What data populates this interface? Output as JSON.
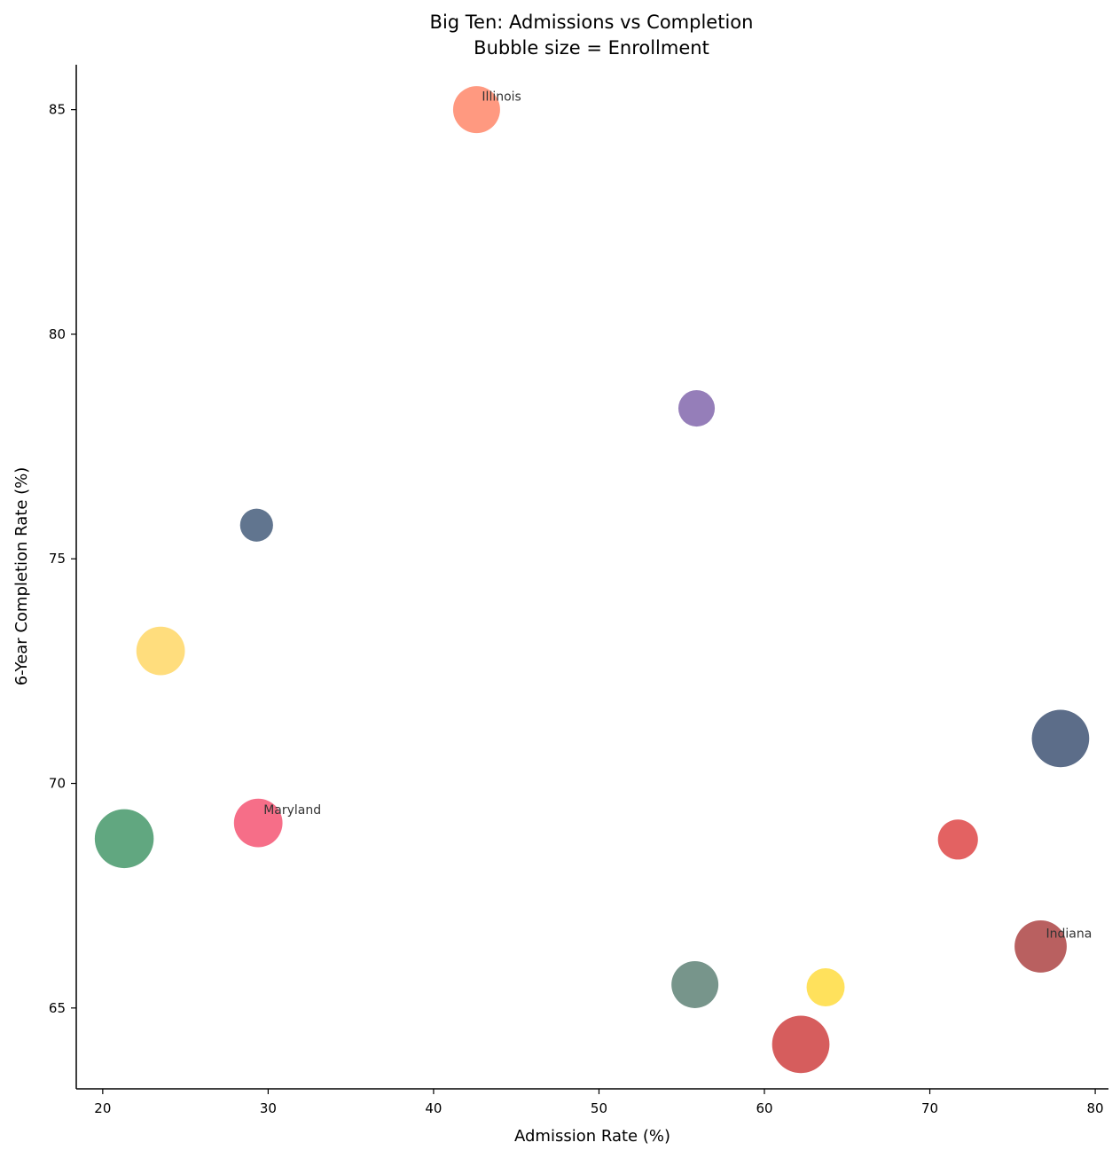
{
  "chart_data": {
    "type": "scatter",
    "title": "Big Ten: Admissions vs Completion",
    "subtitle": "Bubble size = Enrollment",
    "xlabel": "Admission Rate (%)",
    "ylabel": "6-Year Completion Rate (%)",
    "xlim": [
      18.4,
      80.8
    ],
    "ylim": [
      63.2,
      86.0
    ],
    "xticks": [
      20,
      30,
      40,
      50,
      60,
      70,
      80
    ],
    "yticks": [
      65,
      70,
      75,
      80,
      85
    ],
    "grid": false,
    "points": [
      {
        "x": 42.6,
        "y": 85.0,
        "size": 730,
        "color": "#FF7F60",
        "label": "Illinois"
      },
      {
        "x": 55.9,
        "y": 78.35,
        "size": 440,
        "color": "#7B5EA7",
        "label": ""
      },
      {
        "x": 29.3,
        "y": 75.75,
        "size": 360,
        "color": "#3A5273",
        "label": ""
      },
      {
        "x": 23.5,
        "y": 72.95,
        "size": 780,
        "color": "#FFD45C",
        "label": ""
      },
      {
        "x": 77.9,
        "y": 71.0,
        "size": 1090,
        "color": "#33486B",
        "label": ""
      },
      {
        "x": 21.3,
        "y": 68.77,
        "size": 1150,
        "color": "#3A9160",
        "label": ""
      },
      {
        "x": 29.4,
        "y": 69.12,
        "size": 780,
        "color": "#F44A6A",
        "label": "Maryland"
      },
      {
        "x": 71.7,
        "y": 68.75,
        "size": 530,
        "color": "#DC3B3B",
        "label": ""
      },
      {
        "x": 76.7,
        "y": 66.37,
        "size": 900,
        "color": "#A83838",
        "label": "Indiana"
      },
      {
        "x": 55.8,
        "y": 65.52,
        "size": 730,
        "color": "#557A6E",
        "label": ""
      },
      {
        "x": 63.7,
        "y": 65.46,
        "size": 480,
        "color": "#FFD933",
        "label": ""
      },
      {
        "x": 62.2,
        "y": 64.19,
        "size": 1090,
        "color": "#CC3535",
        "label": ""
      }
    ]
  }
}
